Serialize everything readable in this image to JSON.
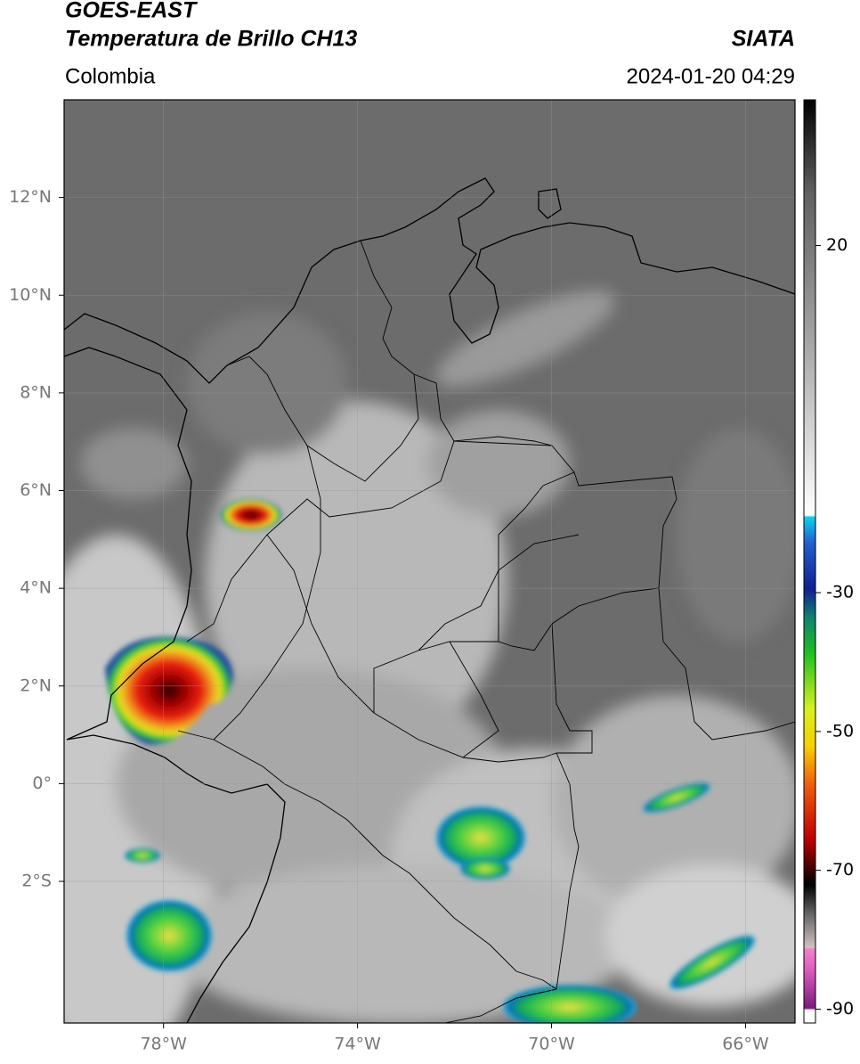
{
  "header": {
    "title": "GOES-EAST",
    "subtitle": "Temperatura de Brillo CH13",
    "source": "SIATA",
    "region": "Colombia",
    "datetime": "2024-01-20 04:29"
  },
  "map": {
    "xlim": [
      -80.05,
      -64.98
    ],
    "ylim": [
      -4.9,
      14
    ],
    "xticks": [
      {
        "value": -78,
        "label": "78°W"
      },
      {
        "value": -74,
        "label": "74°W"
      },
      {
        "value": -70,
        "label": "70°W"
      },
      {
        "value": -66,
        "label": "66°W"
      }
    ],
    "yticks": [
      {
        "value": 12,
        "label": "12°N"
      },
      {
        "value": 10,
        "label": "10°N"
      },
      {
        "value": 8,
        "label": "8°N"
      },
      {
        "value": 6,
        "label": "6°N"
      },
      {
        "value": 4,
        "label": "4°N"
      },
      {
        "value": 2,
        "label": "2°N"
      },
      {
        "value": 0,
        "label": "0°"
      },
      {
        "value": -2,
        "label": "2°S"
      }
    ],
    "grid": true
  },
  "colorbar": {
    "lim": [
      -92,
      41
    ],
    "ticks": [
      20,
      -30,
      -50,
      -70,
      -90
    ]
  }
}
